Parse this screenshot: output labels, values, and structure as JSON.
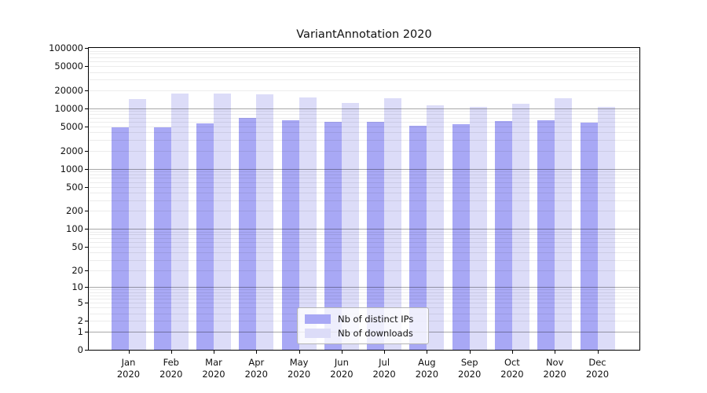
{
  "title": "VariantAnnotation 2020",
  "colors": {
    "ips_bar": "#a8a8f5",
    "downloads_bar": "#dcdcf8",
    "grid_major": "#aaaaaa",
    "grid_minor": "#ebebeb",
    "spine": "#000000"
  },
  "legend": {
    "items": [
      {
        "label": "Nb of distinct IPs",
        "color_key": "ips_bar"
      },
      {
        "label": "Nb of downloads",
        "color_key": "downloads_bar"
      }
    ]
  },
  "chart_data": {
    "type": "bar",
    "title": "VariantAnnotation 2020",
    "categories": [
      "Jan 2020",
      "Feb 2020",
      "Mar 2020",
      "Apr 2020",
      "May 2020",
      "Jun 2020",
      "Jul 2020",
      "Aug 2020",
      "Sep 2020",
      "Oct 2020",
      "Nov 2020",
      "Dec 2020"
    ],
    "x_tick_line1": [
      "Jan",
      "Feb",
      "Mar",
      "Apr",
      "May",
      "Jun",
      "Jul",
      "Aug",
      "Sep",
      "Oct",
      "Nov",
      "Dec"
    ],
    "x_tick_line2": [
      "2020",
      "2020",
      "2020",
      "2020",
      "2020",
      "2020",
      "2020",
      "2020",
      "2020",
      "2020",
      "2020",
      "2020"
    ],
    "series": [
      {
        "name": "Nb of distinct IPs",
        "key": "ips",
        "values": [
          4900,
          4900,
          5600,
          7000,
          6400,
          5900,
          5900,
          5100,
          5500,
          6200,
          6400,
          5800
        ]
      },
      {
        "name": "Nb of downloads",
        "key": "downloads",
        "values": [
          14200,
          17600,
          17400,
          16900,
          15100,
          12100,
          14500,
          11300,
          10600,
          12000,
          14600,
          10600
        ]
      }
    ],
    "y_scale": "log10(value+1), 0 at baseline",
    "ylim": [
      0,
      100000
    ],
    "y_ticks": [
      0,
      1,
      2,
      5,
      10,
      20,
      50,
      100,
      200,
      500,
      1000,
      2000,
      5000,
      10000,
      20000,
      50000,
      100000
    ],
    "grid": "both (minor 2-9 per decade, major at powers of 10), drawn over bars",
    "legend_position": "lower center"
  }
}
